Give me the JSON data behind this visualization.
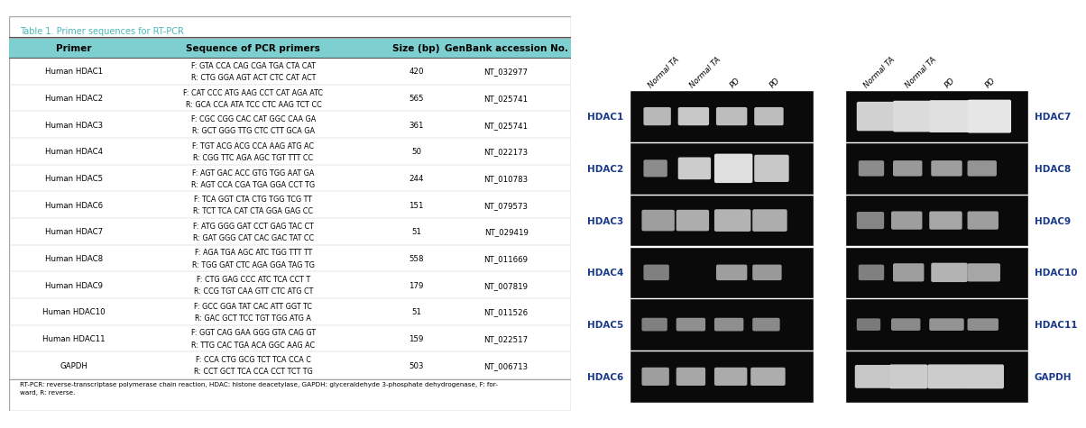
{
  "table_title": "Table 1. Primer sequences for RT-PCR",
  "table_headers": [
    "Primer",
    "Sequence of PCR primers",
    "Size (bp)",
    "GenBank accession No."
  ],
  "table_rows": [
    [
      "Human HDAC1",
      "F: GTA CCA CAG CGA TGA CTA CAT",
      "R: CTG GGA AGT ACT CTC CAT ACT",
      "420",
      "NT_032977"
    ],
    [
      "Human HDAC2",
      "F: CAT CCC ATG AAG CCT CAT AGA ATC",
      "R: GCA CCA ATA TCC CTC AAG TCT CC",
      "565",
      "NT_025741"
    ],
    [
      "Human HDAC3",
      "F: CGC CGG CAC CAT GGC CAA GA",
      "R: GCT GGG TTG CTC CTT GCA GA",
      "361",
      "NT_025741"
    ],
    [
      "Human HDAC4",
      "F: TGT ACG ACG CCA AAG ATG AC",
      "R: CGG TTC AGA AGC TGT TTT CC",
      "50",
      "NT_022173"
    ],
    [
      "Human HDAC5",
      "F: AGT GAC ACC GTG TGG AAT GA",
      "R: AGT CCA CGA TGA GGA CCT TG",
      "244",
      "NT_010783"
    ],
    [
      "Human HDAC6",
      "F: TCA GGT CTA CTG TGG TCG TT",
      "R: TCT TCA CAT CTA GGA GAG CC",
      "151",
      "NT_079573"
    ],
    [
      "Human HDAC7",
      "F: ATG GGG GAT CCT GAG TAC CT",
      "R: GAT GGG CAT CAC GAC TAT CC",
      "51",
      "NT_029419"
    ],
    [
      "Human HDAC8",
      "F: AGA TGA AGC ATC TGG TTT TT",
      "R: TGG GAT CTC AGA GGA TAG TG",
      "558",
      "NT_011669"
    ],
    [
      "Human HDAC9",
      "F: CTG GAG CCC ATC TCA CCT T",
      "R: CCG TGT CAA GTT CTC ATG CT",
      "179",
      "NT_007819"
    ],
    [
      "Human HDAC10",
      "F: GCC GGA TAT CAC ATT GGT TC",
      "R: GAC GCT TCC TGT TGG ATG A",
      "51",
      "NT_011526"
    ],
    [
      "Human HDAC11",
      "F: GGT CAG GAA GGG GTA CAG GT",
      "R: TTG CAC TGA ACA GGC AAG AC",
      "159",
      "NT_022517"
    ],
    [
      "GAPDH",
      "F: CCA CTG GCG TCT TCA CCA C",
      "R: CCT GCT TCA CCA CCT TCT TG",
      "503",
      "NT_006713"
    ]
  ],
  "table_footnote": "RT-PCR: reverse-transcriptase polymerase chain reaction, HDAC: histone deacetylase, GAPDH: glyceraldehyde 3-phosphate dehydrogenase, F: for-\nward, R: reverse.",
  "header_bg": "#7ecfcf",
  "title_text_color": "#4ab8b8",
  "gel_left_labels": [
    "HDAC1",
    "HDAC2",
    "HDAC3",
    "HDAC4",
    "HDAC5",
    "HDAC6"
  ],
  "gel_right_labels": [
    "HDAC7",
    "HDAC8",
    "HDAC9",
    "HDAC10",
    "HDAC11",
    "GAPDH"
  ],
  "gel_top_labels": [
    "Normal TA",
    "Normal TA",
    "PD",
    "PD"
  ],
  "gel_label_color": "#1a3a8a",
  "background_color": "#ffffff",
  "left_bands": [
    [
      [
        0.08,
        0.13,
        0.72,
        0.3
      ],
      [
        0.27,
        0.15,
        0.78,
        0.3
      ],
      [
        0.48,
        0.15,
        0.74,
        0.3
      ],
      [
        0.69,
        0.14,
        0.74,
        0.3
      ]
    ],
    [
      [
        0.08,
        0.11,
        0.55,
        0.28
      ],
      [
        0.27,
        0.16,
        0.8,
        0.38
      ],
      [
        0.47,
        0.19,
        0.88,
        0.52
      ],
      [
        0.69,
        0.17,
        0.78,
        0.48
      ]
    ],
    [
      [
        0.07,
        0.16,
        0.62,
        0.36
      ],
      [
        0.26,
        0.16,
        0.68,
        0.36
      ],
      [
        0.47,
        0.18,
        0.7,
        0.38
      ],
      [
        0.68,
        0.17,
        0.68,
        0.38
      ]
    ],
    [
      [
        0.08,
        0.12,
        0.5,
        0.25
      ],
      [
        0.27,
        0.0,
        0.0,
        0.0
      ],
      [
        0.48,
        0.15,
        0.62,
        0.25
      ],
      [
        0.68,
        0.14,
        0.6,
        0.25
      ]
    ],
    [
      [
        0.07,
        0.12,
        0.5,
        0.2
      ],
      [
        0.26,
        0.14,
        0.56,
        0.2
      ],
      [
        0.47,
        0.14,
        0.56,
        0.2
      ],
      [
        0.68,
        0.13,
        0.54,
        0.2
      ]
    ],
    [
      [
        0.07,
        0.13,
        0.62,
        0.3
      ],
      [
        0.26,
        0.14,
        0.65,
        0.3
      ],
      [
        0.47,
        0.16,
        0.67,
        0.3
      ],
      [
        0.67,
        0.17,
        0.68,
        0.3
      ]
    ]
  ],
  "right_bands": [
    [
      [
        0.07,
        0.19,
        0.82,
        0.52
      ],
      [
        0.27,
        0.21,
        0.86,
        0.56
      ],
      [
        0.47,
        0.22,
        0.88,
        0.58
      ],
      [
        0.68,
        0.22,
        0.9,
        0.6
      ]
    ],
    [
      [
        0.08,
        0.12,
        0.55,
        0.25
      ],
      [
        0.27,
        0.14,
        0.6,
        0.25
      ],
      [
        0.48,
        0.15,
        0.62,
        0.25
      ],
      [
        0.68,
        0.14,
        0.58,
        0.25
      ]
    ],
    [
      [
        0.07,
        0.13,
        0.52,
        0.28
      ],
      [
        0.26,
        0.15,
        0.62,
        0.3
      ],
      [
        0.47,
        0.16,
        0.65,
        0.3
      ],
      [
        0.68,
        0.15,
        0.62,
        0.3
      ]
    ],
    [
      [
        0.08,
        0.12,
        0.5,
        0.25
      ],
      [
        0.27,
        0.15,
        0.62,
        0.3
      ],
      [
        0.48,
        0.18,
        0.7,
        0.32
      ],
      [
        0.68,
        0.16,
        0.65,
        0.3
      ]
    ],
    [
      [
        0.07,
        0.11,
        0.48,
        0.18
      ],
      [
        0.26,
        0.14,
        0.54,
        0.18
      ],
      [
        0.47,
        0.17,
        0.58,
        0.18
      ],
      [
        0.68,
        0.15,
        0.56,
        0.18
      ]
    ],
    [
      [
        0.06,
        0.18,
        0.78,
        0.4
      ],
      [
        0.25,
        0.19,
        0.8,
        0.42
      ],
      [
        0.46,
        0.19,
        0.8,
        0.42
      ],
      [
        0.66,
        0.2,
        0.8,
        0.42
      ]
    ]
  ]
}
